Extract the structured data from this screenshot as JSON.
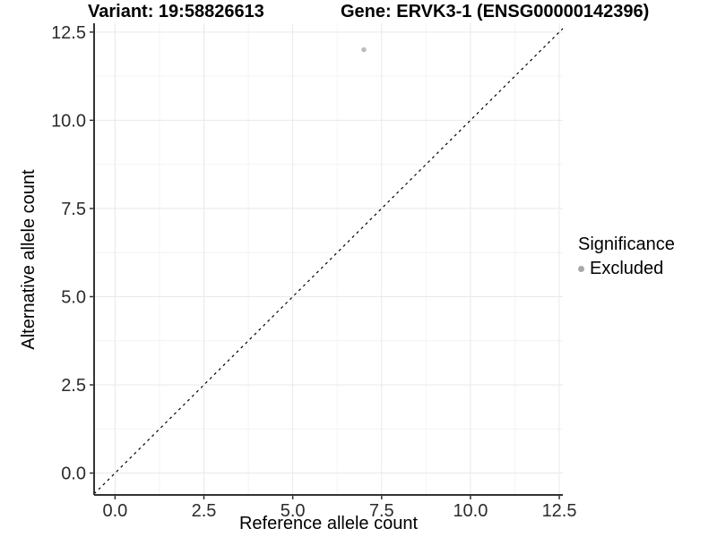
{
  "chart_data": {
    "type": "scatter",
    "titles": {
      "left": "Variant: 19:58826613",
      "right": "Gene: ERVK3-1 (ENSG00000142396)"
    },
    "xlabel": "Reference allele count",
    "ylabel": "Alternative allele count",
    "x_tick_labels": [
      "0.0",
      "2.5",
      "5.0",
      "7.5",
      "10.0",
      "12.5"
    ],
    "x_tick_values": [
      0,
      2.5,
      5,
      7.5,
      10,
      12.5
    ],
    "y_tick_labels": [
      "0.0",
      "2.5",
      "5.0",
      "7.5",
      "10.0",
      "12.5"
    ],
    "y_tick_values": [
      0,
      2.5,
      5,
      7.5,
      10,
      12.5
    ],
    "minor_tick_values": [
      1.25,
      3.75,
      6.25,
      8.75,
      11.25
    ],
    "xlim": [
      -0.59,
      12.6
    ],
    "ylim": [
      -0.62,
      12.75
    ],
    "grid": "major+minor",
    "points": [
      {
        "x": 7,
        "y": 12,
        "series": "Excluded"
      }
    ],
    "reference_line": {
      "slope": 1,
      "intercept": 0,
      "style": "dashed",
      "color": "#000000"
    },
    "legend": {
      "title": "Significance",
      "position": "right",
      "items": [
        {
          "label": "Excluded",
          "color": "#a8a8a8"
        }
      ]
    },
    "colors": {
      "point": "#bcbcbc",
      "grid_major": "#e9e9e9",
      "grid_minor": "#f4f4f4",
      "axis_line": "#333333",
      "tick_mark": "#333333",
      "tick_label": "#2b2b2b",
      "title": "#000000"
    }
  }
}
